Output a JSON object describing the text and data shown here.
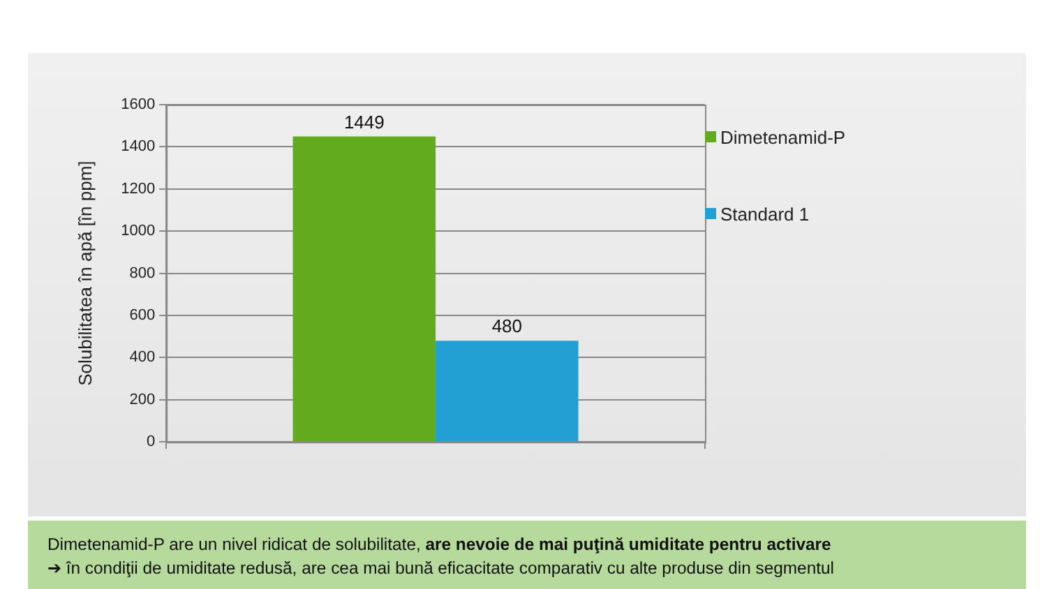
{
  "chart_data": {
    "type": "bar",
    "categories": [
      null
    ],
    "series": [
      {
        "name": "Dimetenamid-P",
        "color": "#62ab1e",
        "values": [
          1449
        ]
      },
      {
        "name": "Standard 1",
        "color": "#22a0d4",
        "values": [
          480
        ]
      }
    ],
    "ylabel": "Solubilitatea în apă [în ppm]",
    "ylim": [
      0,
      1600
    ],
    "yticks": [
      0,
      200,
      400,
      600,
      800,
      1000,
      1200,
      1400,
      1600
    ],
    "grid": "y",
    "legend": "right",
    "data_labels": true,
    "annotations": [
      "Dimetenamid-P are un nivel ridicat de solubilitate, ",
      "are nevoie de mai puţină umiditate pentru activare",
      "➔ în condiţii de umiditate redusă, are cea mai bună eficacitate comparativ cu alte produse din segmentul"
    ]
  }
}
